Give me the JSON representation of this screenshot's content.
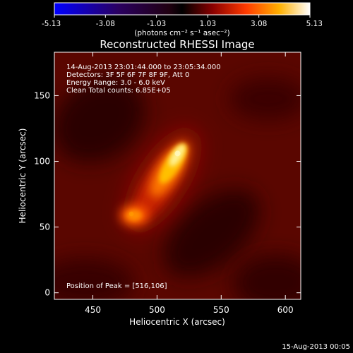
{
  "chart_data": {
    "type": "heatmap",
    "title": "Reconstructed RHESSI Image",
    "xlabel": "Heliocentric X (arcsec)",
    "ylabel": "Heliocentric Y (arcsec)",
    "xlim": [
      420,
      612
    ],
    "ylim": [
      -5,
      183
    ],
    "x_ticks": [
      450,
      500,
      550,
      600
    ],
    "y_ticks": [
      0,
      50,
      100,
      150
    ],
    "colorbar": {
      "ticks": [
        -5.13,
        -3.08,
        -1.03,
        1.03,
        3.08,
        5.13
      ],
      "tick_labels": [
        "-5.13",
        "-3.08",
        "-1.03",
        "1.03",
        "3.08",
        "5.13"
      ],
      "unit_label": "(photons cm⁻² s⁻¹ asec⁻²)",
      "colormap": "hot-diverging"
    },
    "sources": [
      {
        "x": 516,
        "y": 106,
        "peak": 5.13
      },
      {
        "x": 480,
        "y": 60,
        "peak": 3.4
      }
    ],
    "info_lines": [
      "14-Aug-2013 23:01:44.000 to 23:05:34.000",
      "Detectors: 3F 5F 6F 7F 8F 9F, Att 0",
      "Energy Range: 3.0 - 6.0 keV",
      "Clean     Total counts: 6.85E+05"
    ],
    "peak_label": "Position of Peak = [516,106]",
    "footer_date": "15-Aug-2013 00:05"
  }
}
